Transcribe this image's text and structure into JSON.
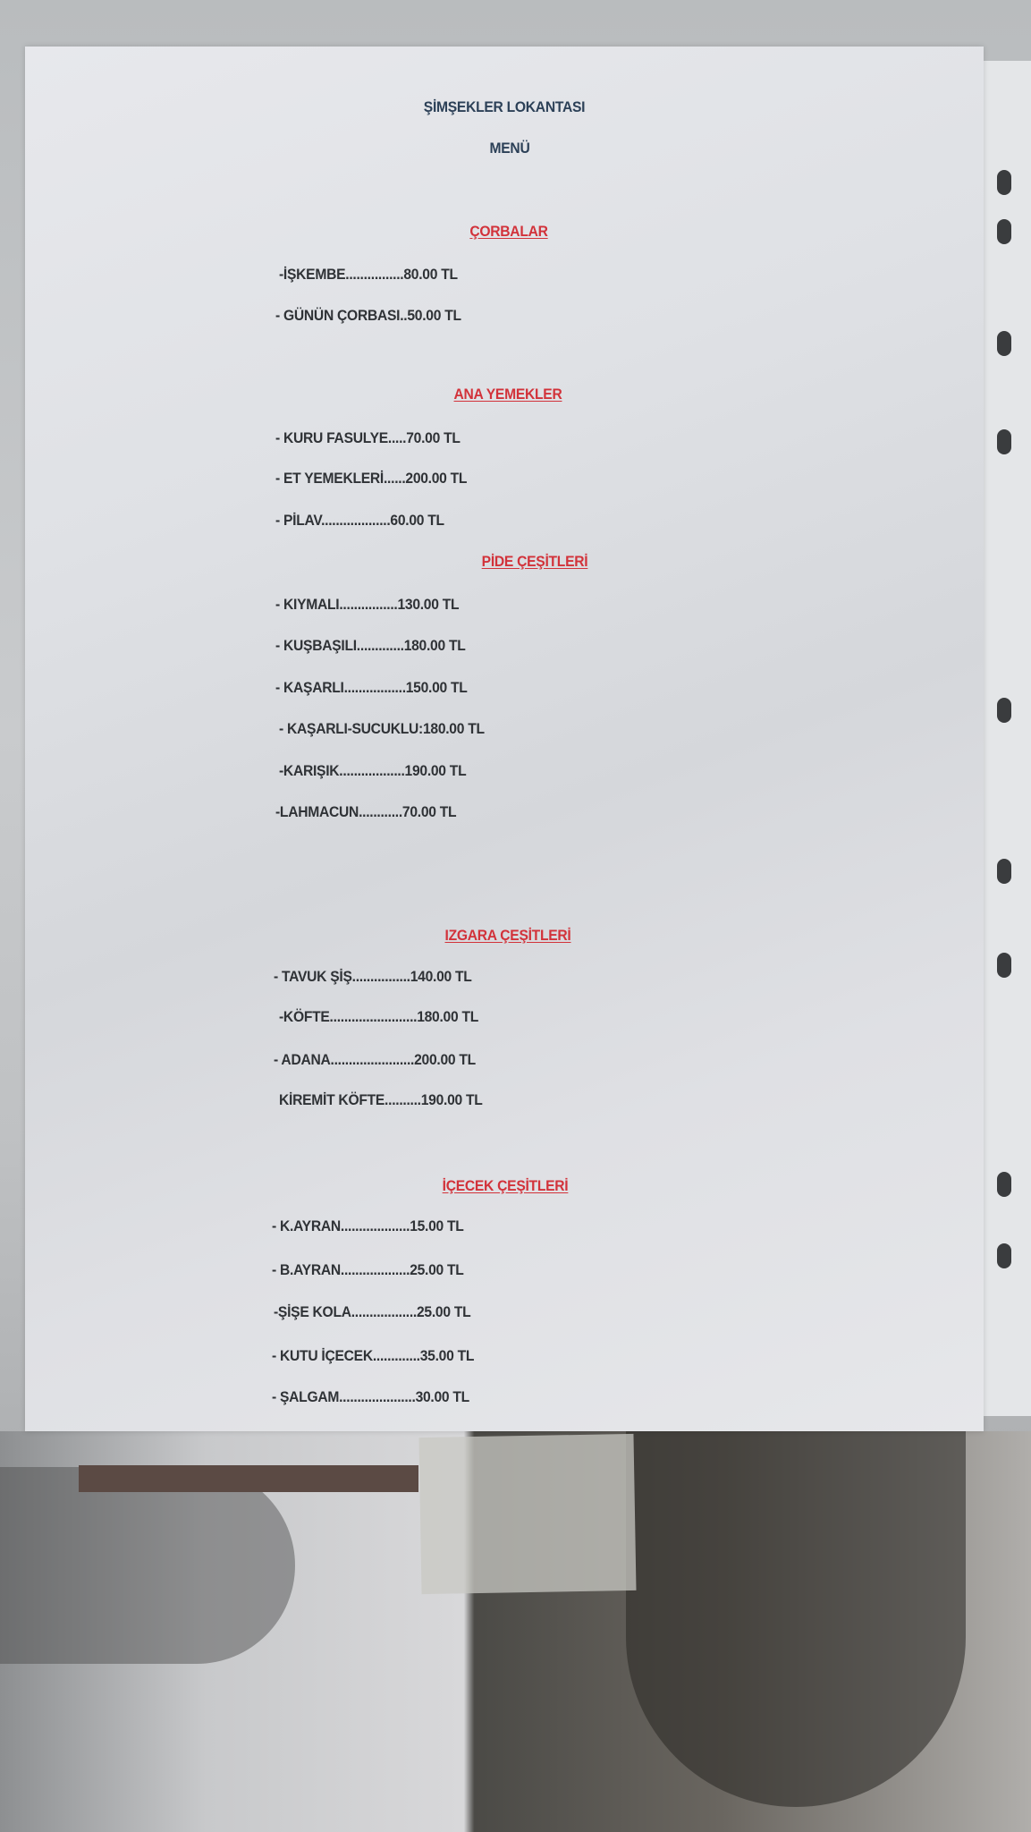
{
  "menu": {
    "restaurant_name": "ŞİMŞEKLER LOKANTASI",
    "menu_label": "MENÜ",
    "sections": [
      {
        "title": "ÇORBALAR",
        "items": [
          "-İŞKEMBE................80.00 TL",
          "- GÜNÜN ÇORBASI..50.00 TL"
        ]
      },
      {
        "title": "ANA YEMEKLER",
        "items": [
          "- KURU FASULYE.....70.00 TL",
          "- ET YEMEKLERİ......200.00 TL",
          "- PİLAV...................60.00 TL"
        ]
      },
      {
        "title": "PİDE ÇEŞİTLERİ",
        "items": [
          "- KIYMALI................130.00 TL",
          "- KUŞBAŞILI.............180.00 TL",
          "- KAŞARLI.................150.00 TL",
          "- KAŞARLI-SUCUKLU:180.00 TL",
          "-KARIŞIK..................190.00 TL",
          "-LAHMACUN............70.00 TL"
        ]
      },
      {
        "title": "IZGARA ÇEŞİTLERİ",
        "items": [
          "- TAVUK ŞİŞ................140.00 TL",
          "-KÖFTE........................180.00 TL",
          "- ADANA.......................200.00 TL",
          "KİREMİT KÖFTE..........190.00 TL"
        ]
      },
      {
        "title": "İÇECEK ÇEŞİTLERİ",
        "items": [
          "- K.AYRAN...................15.00 TL",
          "- B.AYRAN...................25.00 TL",
          "-ŞİŞE KOLA..................25.00 TL",
          "- KUTU İÇECEK.............35.00 TL",
          "- ŞALGAM.....................30.00 TL"
        ]
      }
    ]
  },
  "colors": {
    "title": "#2c4057",
    "section_header": "#d2323a",
    "item_text": "#2f3236"
  }
}
